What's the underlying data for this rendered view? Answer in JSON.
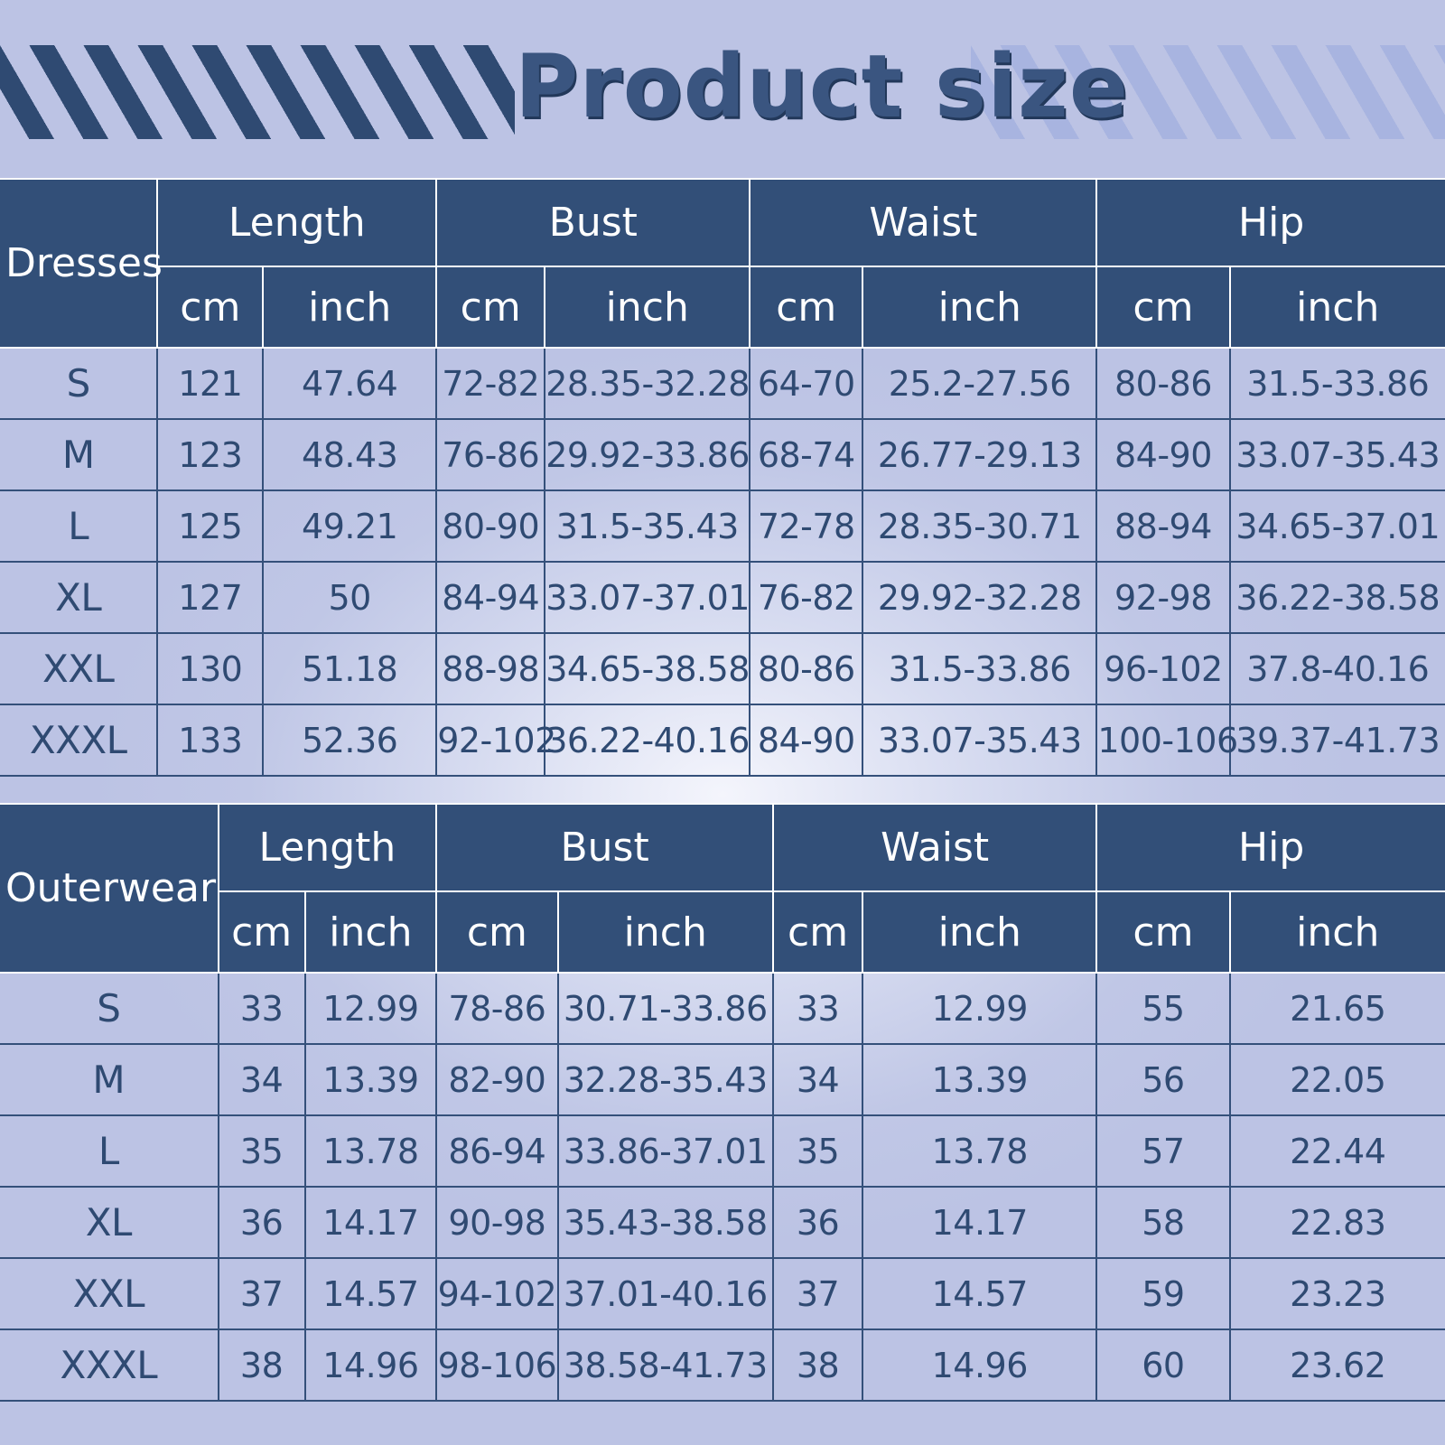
{
  "title": "Product size",
  "headers": {
    "length": "Length",
    "bust": "Bust",
    "waist": "Waist",
    "hip": "Hip",
    "cm": "cm",
    "inch": "inch"
  },
  "tables": [
    {
      "name": "Dresses",
      "rows": [
        [
          "S",
          "121",
          "47.64",
          "72-82",
          "28.35-32.28",
          "64-70",
          "25.2-27.56",
          "80-86",
          "31.5-33.86"
        ],
        [
          "M",
          "123",
          "48.43",
          "76-86",
          "29.92-33.86",
          "68-74",
          "26.77-29.13",
          "84-90",
          "33.07-35.43"
        ],
        [
          "L",
          "125",
          "49.21",
          "80-90",
          "31.5-35.43",
          "72-78",
          "28.35-30.71",
          "88-94",
          "34.65-37.01"
        ],
        [
          "XL",
          "127",
          "50",
          "84-94",
          "33.07-37.01",
          "76-82",
          "29.92-32.28",
          "92-98",
          "36.22-38.58"
        ],
        [
          "XXL",
          "130",
          "51.18",
          "88-98",
          "34.65-38.58",
          "80-86",
          "31.5-33.86",
          "96-102",
          "37.8-40.16"
        ],
        [
          "XXXL",
          "133",
          "52.36",
          "92-102",
          "36.22-40.16",
          "84-90",
          "33.07-35.43",
          "100-106",
          "39.37-41.73"
        ]
      ]
    },
    {
      "name": "Outerwear",
      "rows": [
        [
          "S",
          "33",
          "12.99",
          "78-86",
          "30.71-33.86",
          "33",
          "12.99",
          "55",
          "21.65"
        ],
        [
          "M",
          "34",
          "13.39",
          "82-90",
          "32.28-35.43",
          "34",
          "13.39",
          "56",
          "22.05"
        ],
        [
          "L",
          "35",
          "13.78",
          "86-94",
          "33.86-37.01",
          "35",
          "13.78",
          "57",
          "22.44"
        ],
        [
          "XL",
          "36",
          "14.17",
          "90-98",
          "35.43-38.58",
          "36",
          "14.17",
          "58",
          "22.83"
        ],
        [
          "XXL",
          "37",
          "14.57",
          "94-102",
          "37.01-40.16",
          "37",
          "14.57",
          "59",
          "23.23"
        ],
        [
          "XXXL",
          "38",
          "14.96",
          "98-106",
          "38.58-41.73",
          "38",
          "14.96",
          "60",
          "23.62"
        ]
      ]
    }
  ]
}
